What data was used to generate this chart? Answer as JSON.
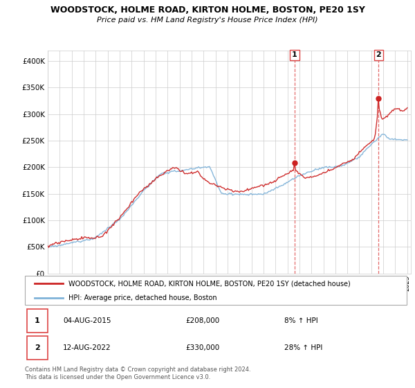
{
  "title": "WOODSTOCK, HOLME ROAD, KIRTON HOLME, BOSTON, PE20 1SY",
  "subtitle": "Price paid vs. HM Land Registry's House Price Index (HPI)",
  "legend_label_red": "WOODSTOCK, HOLME ROAD, KIRTON HOLME, BOSTON, PE20 1SY (detached house)",
  "legend_label_blue": "HPI: Average price, detached house, Boston",
  "annotation1_date": "04-AUG-2015",
  "annotation1_price": "£208,000",
  "annotation1_hpi": "8% ↑ HPI",
  "annotation2_date": "12-AUG-2022",
  "annotation2_price": "£330,000",
  "annotation2_hpi": "28% ↑ HPI",
  "footer": "Contains HM Land Registry data © Crown copyright and database right 2024.\nThis data is licensed under the Open Government Licence v3.0.",
  "red_color": "#cc2222",
  "blue_color": "#7fb2d8",
  "vline_color": "#dd4444",
  "grid_color": "#cccccc",
  "background_color": "#ffffff",
  "ylim": [
    0,
    420000
  ],
  "yticks": [
    0,
    50000,
    100000,
    150000,
    200000,
    250000,
    300000,
    350000,
    400000
  ],
  "sale1_year": 2015.6,
  "sale1_price": 208000,
  "sale2_year": 2022.6,
  "sale2_price": 330000
}
